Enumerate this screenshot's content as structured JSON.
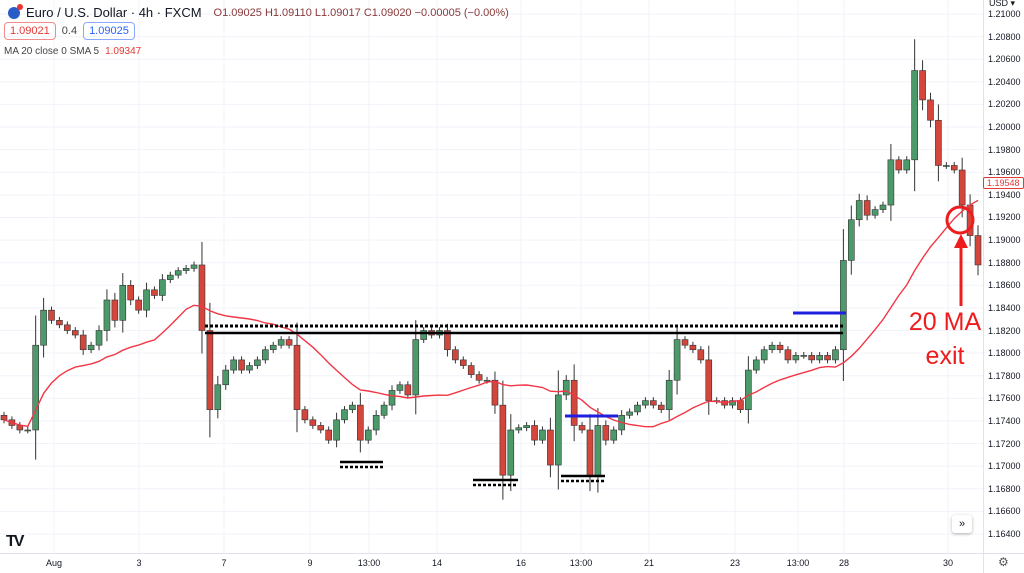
{
  "header": {
    "symbol": "Euro / U.S. Dollar · 4h · FXCM",
    "open": "O1.09025",
    "high": "H1.09110",
    "low": "L1.09017",
    "close": "C1.09020",
    "change": "−0.00005 (−0.00%)",
    "bid": "1.09021",
    "spread": "0.4",
    "ask": "1.09025",
    "indicator_label": "MA 20 close 0 SMA 5",
    "indicator_value": "1.09347"
  },
  "axis": {
    "currency": "USD ▾",
    "current_price_label": "1.19548",
    "price_ticks": [
      "1.21000",
      "1.20800",
      "1.20600",
      "1.20400",
      "1.20200",
      "1.20000",
      "1.19800",
      "1.19600",
      "1.19400",
      "1.19200",
      "1.19000",
      "1.18800",
      "1.18600",
      "1.18400",
      "1.18200",
      "1.18000",
      "1.17800",
      "1.17600",
      "1.17400",
      "1.17200",
      "1.17000",
      "1.16800",
      "1.16600",
      "1.16400"
    ],
    "time_ticks": [
      "Aug",
      "3",
      "7",
      "9",
      "13:00",
      "14",
      "16",
      "13:00",
      "21",
      "23",
      "13:00",
      "28",
      "30"
    ]
  },
  "annotation": {
    "line1": "20 MA",
    "line2": "exit",
    "color": "#ee1c1c"
  },
  "colors": {
    "up": "#4c9a6a",
    "down": "#d2463c",
    "ma": "#f23645",
    "levels": "#000000",
    "blue_lines": "#1f1fe0"
  },
  "chart_data": {
    "type": "candlestick",
    "ylim": [
      1.163,
      1.2115
    ],
    "first_open": 1.1745,
    "closes": [
      1.1741,
      1.1736,
      1.1732,
      1.1732,
      1.1807,
      1.1838,
      1.1829,
      1.1825,
      1.182,
      1.1816,
      1.1803,
      1.1807,
      1.182,
      1.1847,
      1.1829,
      1.186,
      1.1847,
      1.1838,
      1.1856,
      1.1851,
      1.1865,
      1.1869,
      1.1873,
      1.1875,
      1.1878,
      1.182,
      1.175,
      1.1772,
      1.1785,
      1.1794,
      1.1785,
      1.1789,
      1.1794,
      1.1803,
      1.1807,
      1.1812,
      1.1807,
      1.175,
      1.1741,
      1.1736,
      1.1732,
      1.1723,
      1.1741,
      1.175,
      1.1754,
      1.1723,
      1.1732,
      1.1745,
      1.1754,
      1.1767,
      1.1772,
      1.1763,
      1.1812,
      1.182,
      1.1816,
      1.182,
      1.1803,
      1.1794,
      1.1789,
      1.1781,
      1.1776,
      1.1776,
      1.1754,
      1.1692,
      1.1732,
      1.1734,
      1.1736,
      1.1723,
      1.1732,
      1.1701,
      1.1763,
      1.1776,
      1.1736,
      1.1732,
      1.1692,
      1.1736,
      1.1723,
      1.1732,
      1.1745,
      1.1748,
      1.1754,
      1.1758,
      1.1754,
      1.175,
      1.1776,
      1.1812,
      1.1807,
      1.1803,
      1.1794,
      1.1758,
      1.1758,
      1.1754,
      1.1758,
      1.175,
      1.1785,
      1.1794,
      1.1803,
      1.1807,
      1.1803,
      1.1794,
      1.1798,
      1.1798,
      1.1794,
      1.1798,
      1.1794,
      1.1803,
      1.1882,
      1.1918,
      1.1935,
      1.1922,
      1.1927,
      1.1931,
      1.1971,
      1.1962,
      1.1971,
      1.205,
      1.2024,
      1.2006,
      1.1966,
      1.1966,
      1.1962,
      1.1931,
      1.1904,
      1.1878
    ],
    "ma_period": 20,
    "levels": [
      {
        "type": "dotted",
        "price": 1.1827,
        "from": "6",
        "to": "25"
      },
      {
        "type": "solid",
        "price": 1.1822,
        "from": "6",
        "to": "25"
      }
    ]
  }
}
